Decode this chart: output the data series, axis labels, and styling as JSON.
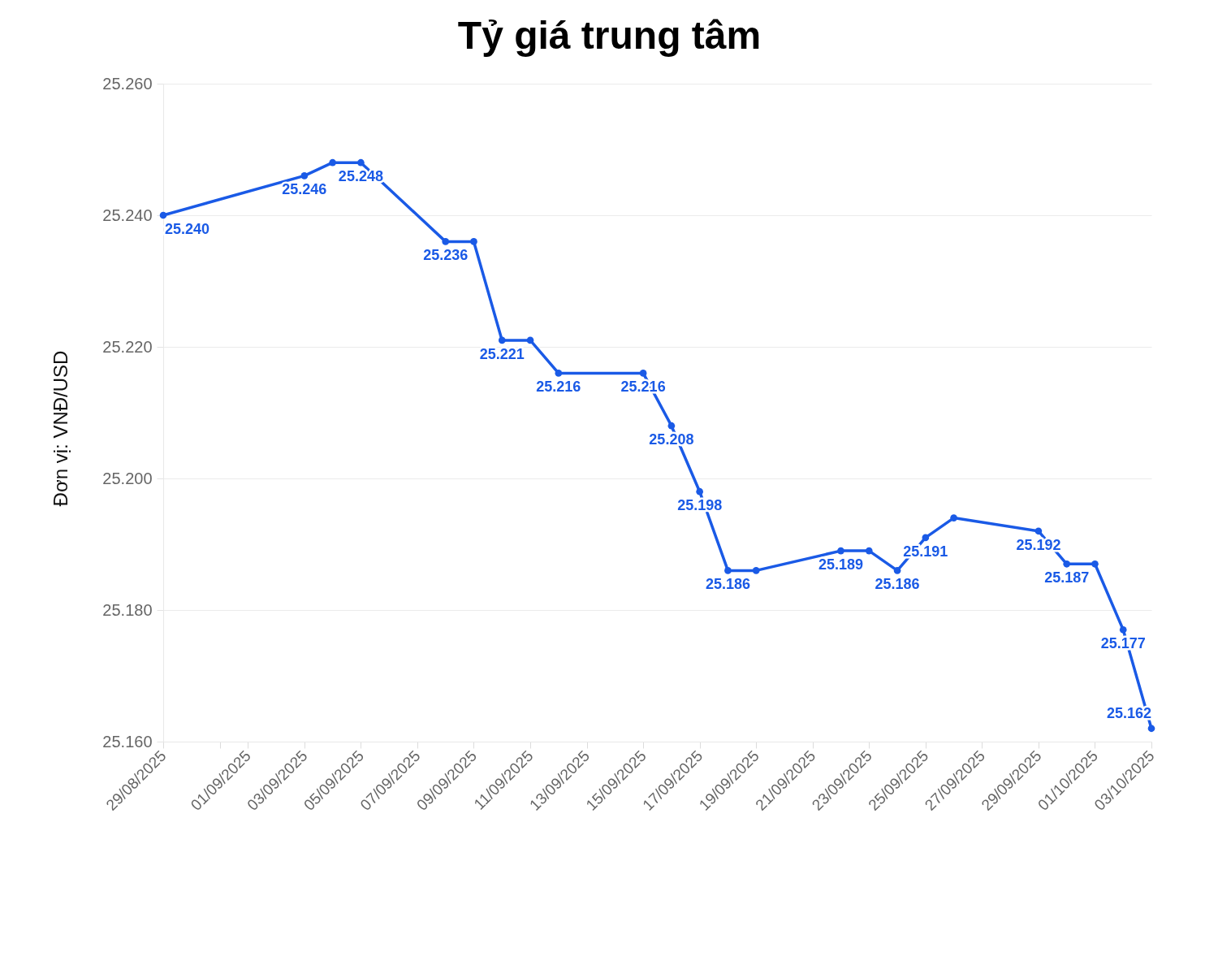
{
  "chart_data": {
    "type": "line",
    "title": "Tỷ giá trung tâm",
    "ylabel": "Đơn vị: VNĐ/USD",
    "x": [
      "2025-08-29",
      "2025-09-03",
      "2025-09-04",
      "2025-09-05",
      "2025-09-08",
      "2025-09-09",
      "2025-09-10",
      "2025-09-11",
      "2025-09-12",
      "2025-09-15",
      "2025-09-16",
      "2025-09-17",
      "2025-09-18",
      "2025-09-19",
      "2025-09-22",
      "2025-09-23",
      "2025-09-24",
      "2025-09-25",
      "2025-09-26",
      "2025-09-29",
      "2025-09-30",
      "2025-10-01",
      "2025-10-02",
      "2025-10-03"
    ],
    "series": [
      {
        "color": "#1a5ae6",
        "values": [
          25240,
          25246,
          25248,
          25248,
          25236,
          25236,
          25221,
          25221,
          25216,
          25216,
          25208,
          25198,
          25186,
          25186,
          25189,
          25189,
          25186,
          25191,
          25194,
          25192,
          25187,
          25187,
          25177,
          25162
        ],
        "value_labels": [
          "25.240",
          "25.246",
          null,
          "25.248",
          "25.236",
          null,
          "25.221",
          null,
          "25.216",
          "25.216",
          "25.208",
          "25.198",
          "25.186",
          null,
          "25.189",
          null,
          "25.186",
          "25.191",
          null,
          "25.192",
          "25.187",
          null,
          "25.177",
          "25.162"
        ]
      }
    ],
    "xlim": [
      "2025-08-29",
      "2025-10-03"
    ],
    "xticks": [
      {
        "value": "2025-08-29",
        "label": "29/08/2025"
      },
      {
        "value": "2025-08-31",
        "label": null
      },
      {
        "value": "2025-09-01",
        "label": "01/09/2025"
      },
      {
        "value": "2025-09-03",
        "label": "03/09/2025"
      },
      {
        "value": "2025-09-05",
        "label": "05/09/2025"
      },
      {
        "value": "2025-09-07",
        "label": "07/09/2025"
      },
      {
        "value": "2025-09-09",
        "label": "09/09/2025"
      },
      {
        "value": "2025-09-11",
        "label": "11/09/2025"
      },
      {
        "value": "2025-09-13",
        "label": "13/09/2025"
      },
      {
        "value": "2025-09-15",
        "label": "15/09/2025"
      },
      {
        "value": "2025-09-17",
        "label": "17/09/2025"
      },
      {
        "value": "2025-09-19",
        "label": "19/09/2025"
      },
      {
        "value": "2025-09-21",
        "label": "21/09/2025"
      },
      {
        "value": "2025-09-23",
        "label": "23/09/2025"
      },
      {
        "value": "2025-09-25",
        "label": "25/09/2025"
      },
      {
        "value": "2025-09-27",
        "label": "27/09/2025"
      },
      {
        "value": "2025-09-29",
        "label": "29/09/2025"
      },
      {
        "value": "2025-10-01",
        "label": "01/10/2025"
      },
      {
        "value": "2025-10-03",
        "label": "03/10/2025"
      }
    ],
    "ylim": [
      25160,
      25260
    ],
    "yticks": [
      {
        "value": 25160,
        "label": "25.160"
      },
      {
        "value": 25180,
        "label": "25.180"
      },
      {
        "value": 25200,
        "label": "25.200"
      },
      {
        "value": 25220,
        "label": "25.220"
      },
      {
        "value": 25240,
        "label": "25.240"
      },
      {
        "value": 25260,
        "label": "25.260"
      }
    ],
    "grid": "y",
    "marker": "circle",
    "line_style": "solid"
  }
}
